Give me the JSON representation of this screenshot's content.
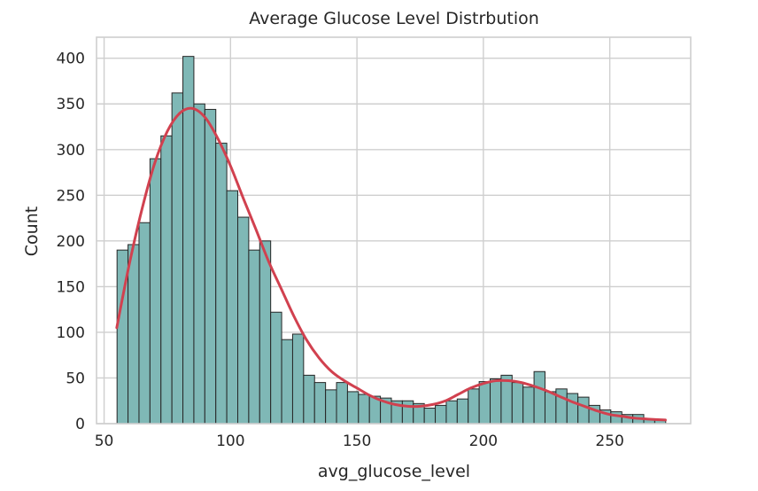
{
  "chart_data": {
    "type": "bar",
    "subtype": "histogram",
    "title": "Average Glucose Level Distrbution",
    "xlabel": "avg_glucose_level",
    "ylabel": "Count",
    "xlim": [
      47,
      282
    ],
    "ylim": [
      0,
      423
    ],
    "xticks": [
      50,
      100,
      150,
      200,
      250
    ],
    "yticks": [
      0,
      50,
      100,
      150,
      200,
      250,
      300,
      350,
      400
    ],
    "grid": true,
    "legend": "none",
    "colors": {
      "bar_fill": "#7fb8b6",
      "bar_edge": "#262626",
      "kde": "#d1414f",
      "grid": "#cfcfcf"
    },
    "bins": {
      "start": 55.12,
      "width": 4.34,
      "counts": [
        190,
        196,
        220,
        290,
        315,
        362,
        402,
        350,
        344,
        307,
        255,
        226,
        190,
        200,
        122,
        92,
        98,
        53,
        45,
        37,
        45,
        35,
        32,
        30,
        28,
        25,
        25,
        22,
        17,
        20,
        25,
        27,
        38,
        46,
        49,
        53,
        45,
        40,
        57,
        35,
        38,
        33,
        29,
        20,
        15,
        13,
        10,
        10,
        5,
        4
      ]
    },
    "kde": {
      "x": [
        55,
        60,
        65,
        70,
        75,
        80,
        85,
        90,
        95,
        100,
        105,
        110,
        115,
        120,
        125,
        130,
        135,
        140,
        145,
        150,
        155,
        160,
        165,
        170,
        175,
        180,
        185,
        190,
        195,
        200,
        205,
        210,
        215,
        220,
        225,
        230,
        235,
        240,
        245,
        250,
        255,
        260,
        265,
        272
      ],
      "y": [
        105,
        175,
        235,
        285,
        320,
        340,
        345,
        335,
        312,
        282,
        247,
        213,
        178,
        148,
        118,
        92,
        72,
        57,
        47,
        39,
        31,
        25,
        21,
        19,
        19,
        21,
        25,
        32,
        39,
        44,
        47,
        47,
        45,
        41,
        36,
        30,
        24,
        19,
        14,
        10,
        8,
        6,
        5,
        4
      ]
    }
  }
}
